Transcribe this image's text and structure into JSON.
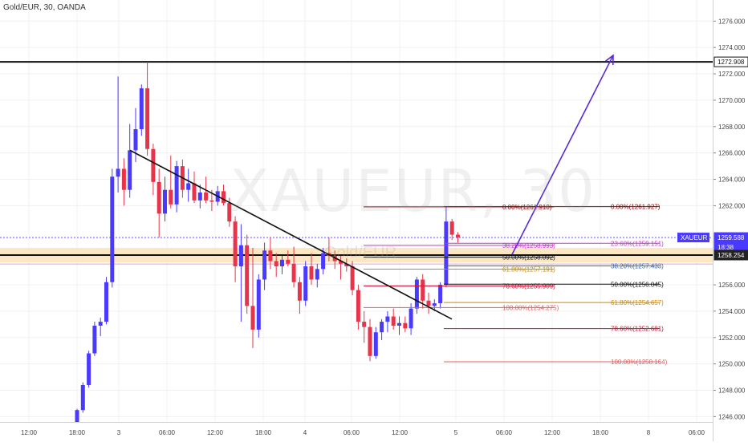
{
  "header": {
    "title": "Gold/EUR, 30, OANDA"
  },
  "watermark": {
    "main": "XAUEUR, 30",
    "sub": "Gold/EUR"
  },
  "chart_data": {
    "type": "candlestick",
    "symbol": "XAUEUR",
    "ylim": [
      1245.6,
      1277.6
    ],
    "y_ticks": [
      {
        "v": 1276,
        "t": "1276.000"
      },
      {
        "v": 1274,
        "t": "1274.000"
      },
      {
        "v": 1272,
        "t": "1272.000"
      },
      {
        "v": 1270,
        "t": "1270.000"
      },
      {
        "v": 1268,
        "t": "1268.000"
      },
      {
        "v": 1266,
        "t": "1266.000"
      },
      {
        "v": 1264,
        "t": "1264.000"
      },
      {
        "v": 1262,
        "t": "1262.000"
      },
      {
        "v": 1256,
        "t": "1256.000"
      },
      {
        "v": 1254,
        "t": "1254.000"
      },
      {
        "v": 1252,
        "t": "1252.000"
      },
      {
        "v": 1250,
        "t": "1250.000"
      },
      {
        "v": 1248,
        "t": "1248.000"
      },
      {
        "v": 1246,
        "t": "1246.000"
      }
    ],
    "x_ticks": [
      "12:00",
      "18:00",
      "3",
      "06:00",
      "12:00",
      "18:00",
      "4",
      "06:00",
      "12:00",
      "5",
      "06:00",
      "12:00",
      "18:00",
      "8",
      "06:00"
    ],
    "price_labels": [
      {
        "text": "1272.908",
        "price": 1272.908,
        "bg": "#ffffff",
        "fg": "#111111",
        "border": "#111111"
      },
      {
        "text": "XAUEUR",
        "price": 1259.588,
        "bg": "#4a3aff",
        "fg": "#ffffff",
        "offset": -44
      },
      {
        "text": "1259.588",
        "price": 1259.588,
        "bg": "#4a3aff",
        "fg": "#ffffff"
      },
      {
        "text": "18:38",
        "price": 1258.85,
        "bg": "#4a3aff",
        "fg": "#ffffff"
      },
      {
        "text": "1258.254",
        "price": 1258.254,
        "bg": "#222222",
        "fg": "#ffffff"
      }
    ],
    "candles": [
      [
        1245.6,
        1246.6,
        1245.5,
        1246.5
      ],
      [
        1246.5,
        1248.6,
        1246.3,
        1248.4
      ],
      [
        1248.4,
        1251.0,
        1248.2,
        1250.8
      ],
      [
        1250.8,
        1253.2,
        1250.6,
        1252.9
      ],
      [
        1252.9,
        1253.5,
        1252.1,
        1253.2
      ],
      [
        1253.2,
        1256.6,
        1253.0,
        1256.2
      ],
      [
        1256.2,
        1264.8,
        1255.8,
        1264.2
      ],
      [
        1264.2,
        1271.8,
        1263.0,
        1264.8
      ],
      [
        1264.8,
        1265.6,
        1262.0,
        1263.2
      ],
      [
        1263.2,
        1268.2,
        1262.6,
        1266.2
      ],
      [
        1266.2,
        1269.4,
        1265.3,
        1267.8
      ],
      [
        1267.8,
        1271.2,
        1267.3,
        1270.9
      ],
      [
        1270.9,
        1272.9,
        1265.8,
        1266.3
      ],
      [
        1266.3,
        1266.7,
        1262.8,
        1263.8
      ],
      [
        1263.8,
        1264.8,
        1259.6,
        1261.4
      ],
      [
        1261.4,
        1264.2,
        1260.8,
        1263.2
      ],
      [
        1263.2,
        1265.8,
        1261.8,
        1262.1
      ],
      [
        1262.1,
        1265.4,
        1261.5,
        1265.0
      ],
      [
        1265.0,
        1265.5,
        1262.6,
        1263.2
      ],
      [
        1263.2,
        1264.8,
        1262.3,
        1263.7
      ],
      [
        1263.7,
        1264.6,
        1262.2,
        1262.4
      ],
      [
        1262.4,
        1263.6,
        1261.8,
        1263.0
      ],
      [
        1263.0,
        1264.2,
        1262.2,
        1262.4
      ],
      [
        1262.4,
        1263.2,
        1261.6,
        1262.3
      ],
      [
        1262.3,
        1263.5,
        1262.0,
        1263.1
      ],
      [
        1263.1,
        1263.6,
        1262.0,
        1262.2
      ],
      [
        1262.2,
        1262.6,
        1260.4,
        1260.8
      ],
      [
        1260.8,
        1261.2,
        1256.2,
        1257.4
      ],
      [
        1257.4,
        1260.6,
        1253.2,
        1259.0
      ],
      [
        1259.0,
        1259.8,
        1253.8,
        1254.4
      ],
      [
        1254.4,
        1258.8,
        1251.2,
        1252.6
      ],
      [
        1252.6,
        1256.8,
        1252.0,
        1256.4
      ],
      [
        1256.4,
        1259.2,
        1255.6,
        1258.6
      ],
      [
        1258.6,
        1259.6,
        1257.2,
        1257.8
      ],
      [
        1257.8,
        1258.4,
        1256.6,
        1257.4
      ],
      [
        1257.4,
        1258.2,
        1256.8,
        1257.9
      ],
      [
        1257.9,
        1258.6,
        1257.4,
        1257.6
      ],
      [
        1257.6,
        1258.9,
        1255.8,
        1256.2
      ],
      [
        1256.2,
        1256.6,
        1253.8,
        1254.8
      ],
      [
        1254.8,
        1257.8,
        1254.4,
        1257.4
      ],
      [
        1257.4,
        1258.4,
        1256.0,
        1256.4
      ],
      [
        1256.4,
        1257.6,
        1255.8,
        1257.2
      ],
      [
        1257.2,
        1258.8,
        1256.8,
        1258.4
      ],
      [
        1258.4,
        1259.6,
        1257.8,
        1258.2
      ],
      [
        1258.2,
        1258.6,
        1257.2,
        1257.8
      ],
      [
        1257.8,
        1258.2,
        1256.4,
        1257.6
      ],
      [
        1257.6,
        1258.0,
        1257.0,
        1257.4
      ],
      [
        1257.4,
        1257.8,
        1255.2,
        1255.6
      ],
      [
        1255.6,
        1256.0,
        1252.6,
        1253.2
      ],
      [
        1253.2,
        1254.0,
        1251.6,
        1252.8
      ],
      [
        1252.8,
        1253.4,
        1250.2,
        1250.6
      ],
      [
        1250.6,
        1252.8,
        1250.4,
        1252.4
      ],
      [
        1252.4,
        1253.4,
        1251.8,
        1253.2
      ],
      [
        1253.2,
        1254.0,
        1252.4,
        1253.6
      ],
      [
        1253.6,
        1254.2,
        1252.6,
        1252.9
      ],
      [
        1252.9,
        1253.6,
        1252.2,
        1253.1
      ],
      [
        1253.1,
        1253.6,
        1252.4,
        1252.7
      ],
      [
        1252.7,
        1254.6,
        1252.2,
        1254.2
      ],
      [
        1254.2,
        1256.6,
        1253.8,
        1256.4
      ],
      [
        1256.4,
        1256.8,
        1254.2,
        1254.8
      ],
      [
        1254.8,
        1255.4,
        1253.8,
        1254.4
      ],
      [
        1254.4,
        1254.9,
        1254.0,
        1254.6
      ],
      [
        1254.6,
        1256.2,
        1254.2,
        1256.0
      ],
      [
        1256.0,
        1261.9,
        1255.8,
        1260.8
      ],
      [
        1260.8,
        1261.0,
        1259.4,
        1259.8
      ],
      [
        1259.8,
        1260.0,
        1259.2,
        1259.6
      ]
    ],
    "trendline": {
      "from": [
        0,
        1266.2
      ],
      "to": [
        1,
        1253.4
      ]
    },
    "fib_left": {
      "levels": [
        {
          "label": "0.00%(1261.910)",
          "price": 1261.91,
          "color": "#880000"
        },
        {
          "label": "38.20%(1258.993)",
          "price": 1258.993,
          "color": "#cc33cc"
        },
        {
          "label": "50.00%(1258.092)",
          "price": 1258.092,
          "color": "#111111"
        },
        {
          "label": "61.80%(1257.191)",
          "price": 1257.191,
          "color": "#cc8a00"
        },
        {
          "label": "78.60%(1255.909)",
          "price": 1255.909,
          "color": "#cc1133"
        },
        {
          "label": "100.00%(1254.275)",
          "price": 1254.275,
          "color": "#e06060"
        }
      ]
    },
    "fib_right": {
      "levels": [
        {
          "label": "0.00%(1261.927)",
          "price": 1261.927,
          "color": "#880000"
        },
        {
          "label": "23.60%(1259.151)",
          "price": 1259.151,
          "color": "#cc33cc"
        },
        {
          "label": "38.20%(1257.433)",
          "price": 1257.433,
          "color": "#3366cc"
        },
        {
          "label": "50.00%(1256.045)",
          "price": 1256.045,
          "color": "#111111"
        },
        {
          "label": "61.80%(1254.657)",
          "price": 1254.657,
          "color": "#cc8a00"
        },
        {
          "label": "78.60%(1252.681)",
          "price": 1252.681,
          "color": "#cc1133"
        },
        {
          "label": "100.00%(1250.164)",
          "price": 1250.164,
          "color": "#e06060"
        }
      ]
    },
    "resistance": 1272.908,
    "support_zone": [
      1257.7,
      1258.8
    ],
    "support_line": 1258.254,
    "current_price": 1259.588,
    "colors": {
      "up": "#4a3aff",
      "down": "#e8344a",
      "arrow": "#5a2ad8",
      "line": "#111111"
    }
  }
}
